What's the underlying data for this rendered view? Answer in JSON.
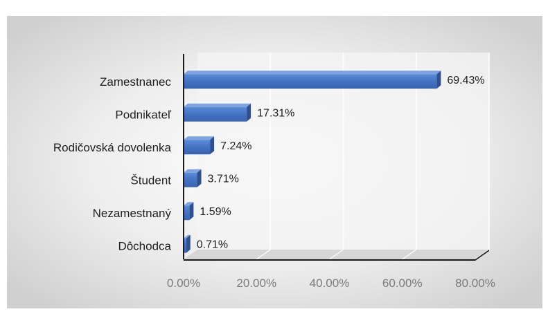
{
  "chart_data": {
    "type": "bar",
    "orientation": "horizontal",
    "style": "3d",
    "categories": [
      "Zamestnanec",
      "Podnikateľ",
      "Rodičovská dovolenka",
      "Študent",
      "Nezamestnaný",
      "Dôchodca"
    ],
    "values": [
      69.43,
      17.31,
      7.24,
      3.71,
      1.59,
      0.71
    ],
    "value_labels": [
      "69.43%",
      "17.31%",
      "7.24%",
      "3.71%",
      "1.59%",
      "0.71%"
    ],
    "x_ticks": [
      "0.00%",
      "20.00%",
      "40.00%",
      "60.00%",
      "80.00%"
    ],
    "x_tick_values": [
      0,
      20,
      40,
      60,
      80
    ],
    "xlim": [
      0,
      80
    ],
    "grid": true,
    "legend": "none",
    "bar_color": "#4472c4",
    "background_color": "#e2e2e2"
  }
}
